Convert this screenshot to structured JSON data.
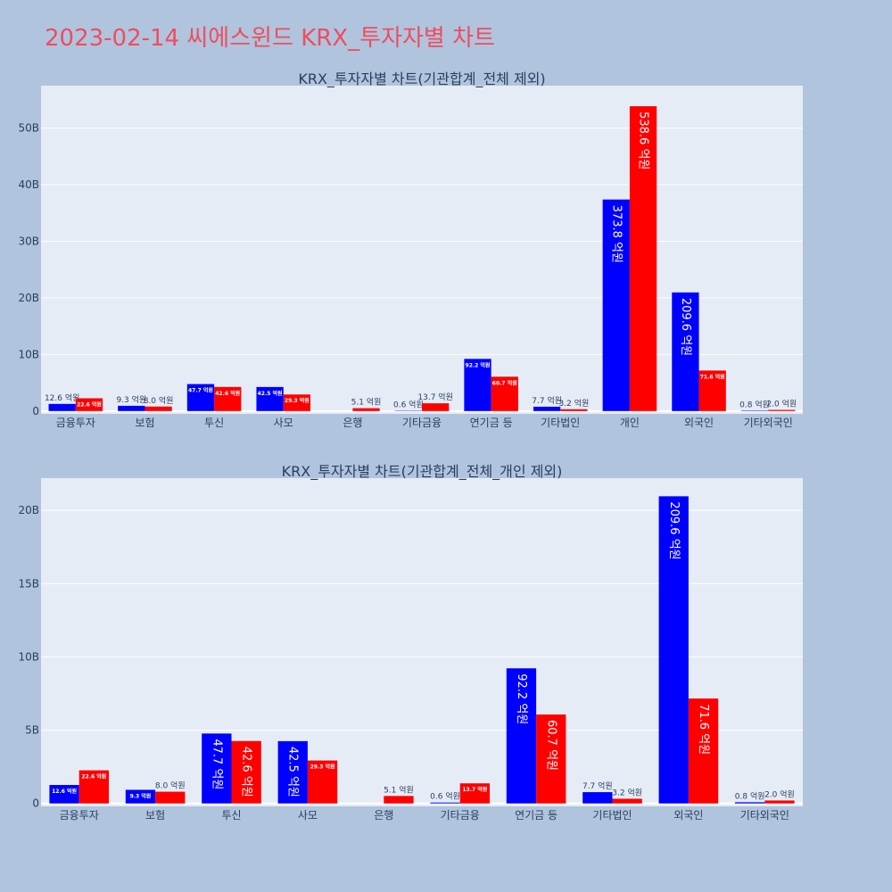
{
  "page_title": "2023-02-14 씨에스윈드 KRX_투자자별 차트",
  "chart_data": [
    {
      "type": "bar",
      "title": "KRX_투자자별 차트(기관합계_전체 제외)",
      "categories": [
        "금융투자",
        "보험",
        "투신",
        "사모",
        "은행",
        "기타금융",
        "연기금 등",
        "기타법인",
        "개인",
        "외국인",
        "기타외국인"
      ],
      "series": [
        {
          "color": "#0000ff",
          "values": [
            1.26,
            0.93,
            4.77,
            4.25,
            0,
            0.06,
            9.22,
            0.77,
            37.38,
            20.96,
            0.08
          ]
        },
        {
          "color": "#ff0000",
          "values": [
            2.26,
            0.8,
            4.26,
            2.93,
            0.51,
            1.37,
            6.07,
            0.32,
            53.86,
            7.16,
            0.2
          ]
        }
      ],
      "labels": [
        [
          "12.6 억원",
          "9.3 억원",
          "47.7 억원",
          "42.5 억원",
          "",
          "0.6 억원",
          "92.2 억원",
          "7.7 억원",
          "373.8 억원",
          "209.6 억원",
          "0.8 억원"
        ],
        [
          "22.6 억원",
          "8.0 억원",
          "42.6 억원",
          "29.3 억원",
          "5.1 억원",
          "13.7 억원",
          "60.7 억원",
          "3.2 억원",
          "538.6 억원",
          "71.6 억원",
          "2.0 억원"
        ]
      ],
      "y_ticks": [
        "0",
        "10B",
        "20B",
        "30B",
        "40B",
        "50B"
      ],
      "y_tick_values": [
        0,
        10,
        20,
        30,
        40,
        50
      ],
      "ylim": [
        -0.5,
        57.5
      ],
      "grid": true
    },
    {
      "type": "bar",
      "title": "KRX_투자자별 차트(기관합계_전체_개인 제외)",
      "categories": [
        "금융투자",
        "보험",
        "투신",
        "사모",
        "은행",
        "기타금융",
        "연기금 등",
        "기타법인",
        "외국인",
        "기타외국인"
      ],
      "series": [
        {
          "color": "#0000ff",
          "values": [
            1.26,
            0.93,
            4.77,
            4.25,
            0,
            0.06,
            9.22,
            0.77,
            20.96,
            0.08
          ]
        },
        {
          "color": "#ff0000",
          "values": [
            2.26,
            0.8,
            4.26,
            2.93,
            0.51,
            1.37,
            6.07,
            0.32,
            7.16,
            0.2
          ]
        }
      ],
      "labels": [
        [
          "12.6 억원",
          "9.3 억원",
          "47.7 억원",
          "42.5 억원",
          "",
          "0.6 억원",
          "92.2 억원",
          "7.7 억원",
          "209.6 억원",
          "0.8 억원"
        ],
        [
          "22.6 억원",
          "8.0 억원",
          "42.6 억원",
          "29.3 억원",
          "5.1 억원",
          "13.7 억원",
          "60.7 억원",
          "3.2 억원",
          "71.6 억원",
          "2.0 억원"
        ]
      ],
      "y_ticks": [
        "0",
        "5B",
        "10B",
        "15B",
        "20B"
      ],
      "y_tick_values": [
        0,
        5,
        10,
        15,
        20
      ],
      "ylim": [
        -0.2,
        22.2
      ],
      "grid": true
    }
  ]
}
